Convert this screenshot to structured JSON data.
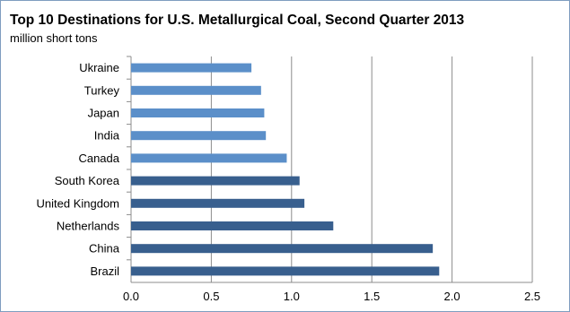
{
  "chart_data": {
    "type": "bar",
    "orientation": "horizontal",
    "title": "Top 10 Destinations for U.S. Metallurgical Coal, Second Quarter 2013",
    "subtitle": "million short tons",
    "categories": [
      "Ukraine",
      "Turkey",
      "Japan",
      "India",
      "Canada",
      "South Korea",
      "United Kingdom",
      "Netherlands",
      "China",
      "Brazil"
    ],
    "values": [
      0.75,
      0.81,
      0.83,
      0.84,
      0.97,
      1.05,
      1.08,
      1.26,
      1.88,
      1.92
    ],
    "bar_colors": [
      "#5b8fc9",
      "#5b8fc9",
      "#5b8fc9",
      "#5b8fc9",
      "#5b8fc9",
      "#385f8e",
      "#385f8e",
      "#385f8e",
      "#385f8e",
      "#385f8e"
    ],
    "xlim": [
      0,
      2.5
    ],
    "xticks": [
      "0.0",
      "0.5",
      "1.0",
      "1.5",
      "2.0",
      "2.5"
    ],
    "xtick_values": [
      0,
      0.5,
      1.0,
      1.5,
      2.0,
      2.5
    ],
    "grid": true,
    "legend": false,
    "xlabel": "",
    "ylabel": ""
  }
}
